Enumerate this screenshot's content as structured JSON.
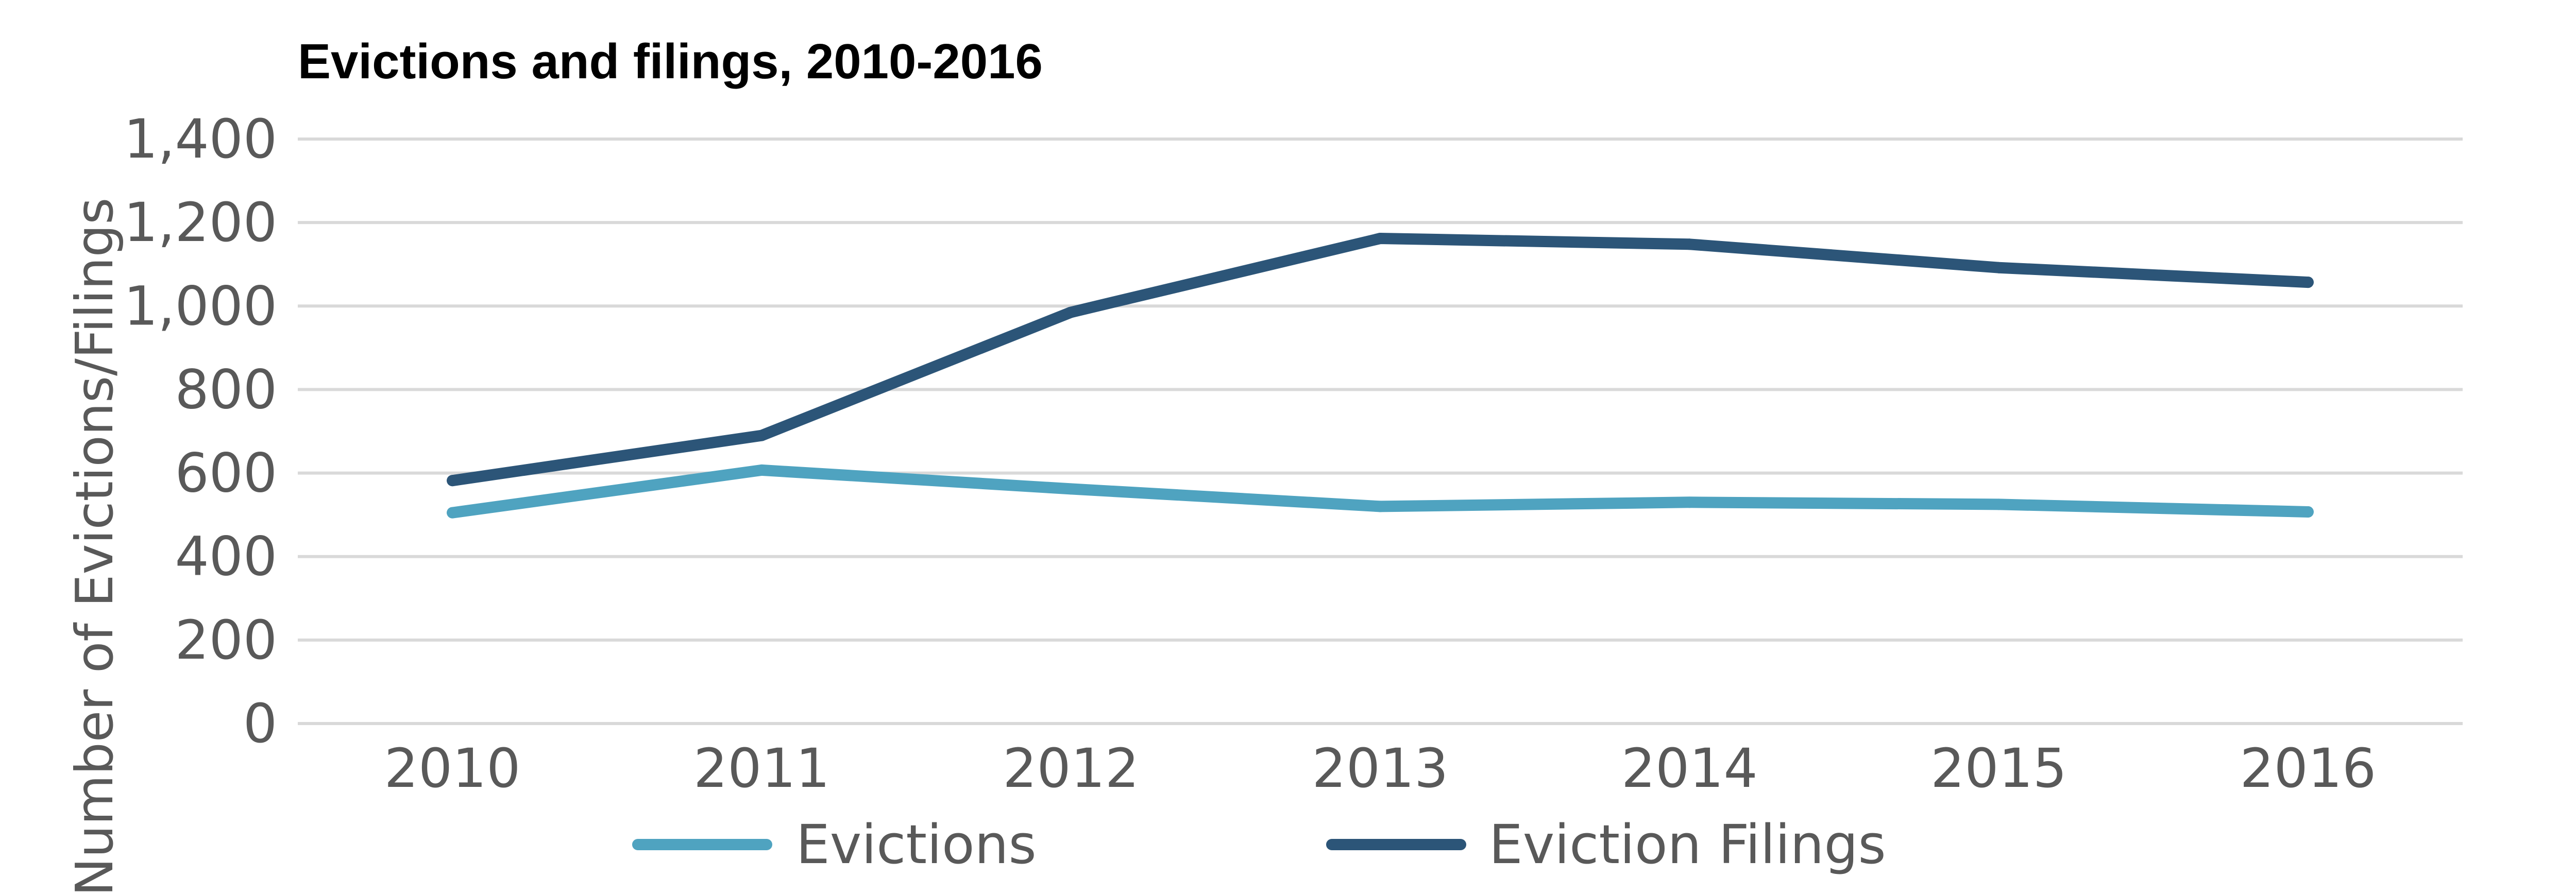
{
  "chart_data": {
    "type": "line",
    "title": "Evictions and filings, 2010-2016",
    "xlabel": "",
    "ylabel": "Number of Evictions/Filings",
    "categories": [
      "2010",
      "2011",
      "2012",
      "2013",
      "2014",
      "2015",
      "2016"
    ],
    "ylim": [
      0,
      1400
    ],
    "yticks": [
      0,
      200,
      400,
      600,
      800,
      1000,
      1200,
      1400
    ],
    "ytick_labels": [
      "0",
      "200",
      "400",
      "600",
      "800",
      "1,000",
      "1,200",
      "1,400"
    ],
    "grid": true,
    "legend_position": "bottom",
    "series": [
      {
        "name": "Evictions",
        "color": "#4fa3c0",
        "values": [
          505,
          607,
          562,
          520,
          530,
          525,
          507
        ]
      },
      {
        "name": "Eviction Filings",
        "color": "#2c5578",
        "values": [
          582,
          690,
          985,
          1162,
          1148,
          1092,
          1057
        ]
      }
    ]
  }
}
